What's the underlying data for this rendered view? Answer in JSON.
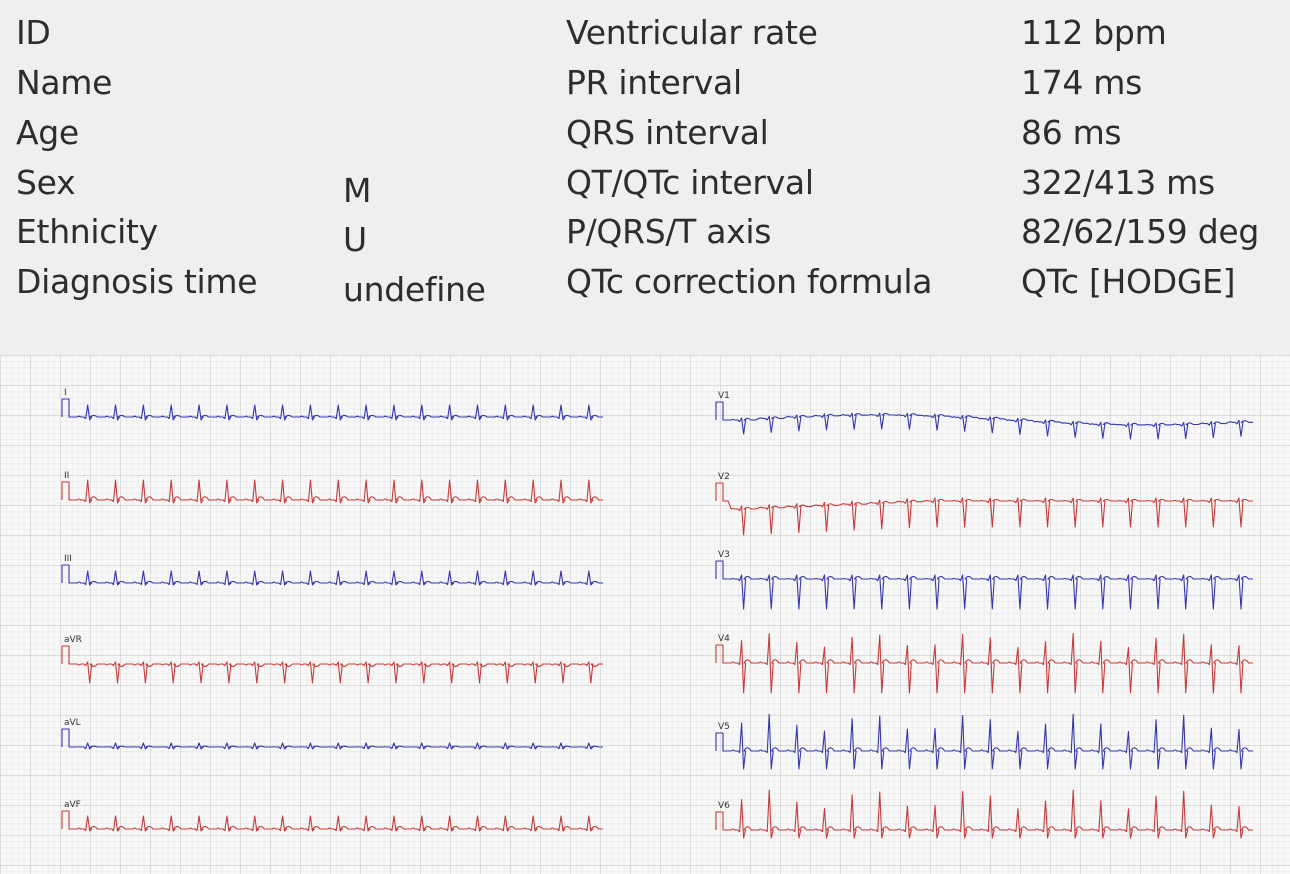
{
  "patient": {
    "labels": [
      "ID",
      "Name",
      "Age",
      "Sex",
      "Ethnicity",
      "Diagnosis time"
    ],
    "values": [
      "",
      "",
      "",
      "M",
      "U",
      "undefine"
    ]
  },
  "measurements": {
    "labels": [
      "Ventricular rate",
      "PR interval",
      "QRS interval",
      "QT/QTc interval",
      "P/QRS/T axis",
      "QTc correction formula"
    ],
    "values": [
      "112 bpm",
      "174 ms",
      "86 ms",
      "322/413 ms",
      "82/62/159 deg",
      "QTc [HODGE]"
    ]
  },
  "ecg": {
    "leads_left": [
      "I",
      "II",
      "III",
      "aVR",
      "aVL",
      "aVF"
    ],
    "leads_right": [
      "V1",
      "V2",
      "V3",
      "V4",
      "V5",
      "V6"
    ],
    "trace_colors": [
      "#3535b0",
      "#c83a3a"
    ],
    "grid_colors": {
      "minor": "#dcdcdc",
      "major": "#bdbdbd",
      "paper": "#f6f6f6"
    }
  }
}
